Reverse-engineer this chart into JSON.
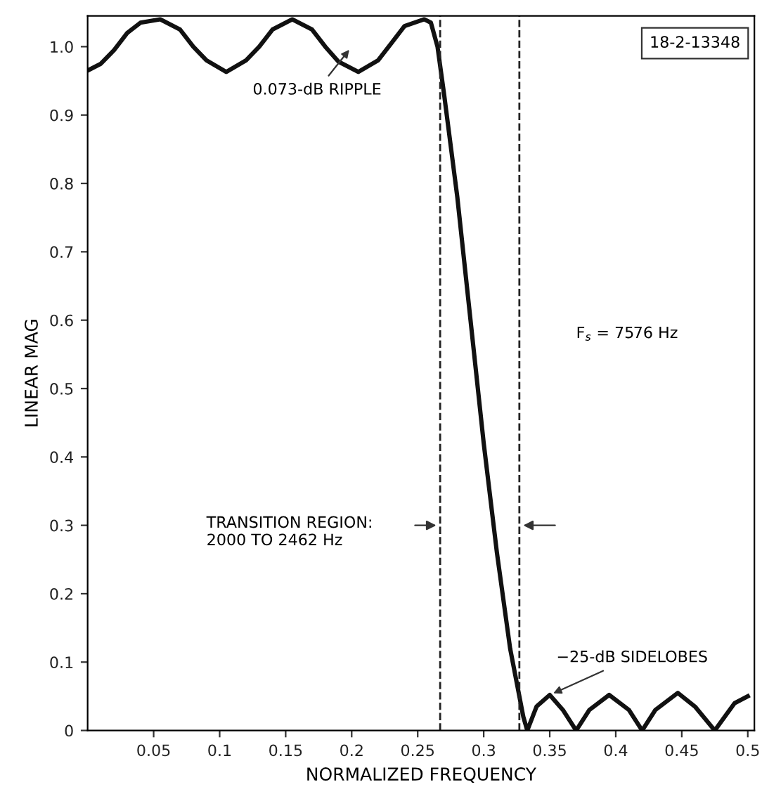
{
  "chart_data": {
    "type": "line",
    "xlabel": "NORMALIZED FREQUENCY",
    "ylabel": "LINEAR MAG",
    "x": [
      0,
      0.01,
      0.02,
      0.03,
      0.04,
      0.055,
      0.07,
      0.08,
      0.09,
      0.105,
      0.12,
      0.13,
      0.14,
      0.155,
      0.17,
      0.18,
      0.19,
      0.205,
      0.22,
      0.23,
      0.24,
      0.255,
      0.26,
      0.265,
      0.27,
      0.28,
      0.29,
      0.3,
      0.31,
      0.32,
      0.33,
      0.333,
      0.34,
      0.35,
      0.36,
      0.37,
      0.38,
      0.395,
      0.41,
      0.42,
      0.43,
      0.447,
      0.46,
      0.475,
      0.49,
      0.5
    ],
    "series": [
      {
        "color": "#111111",
        "values": [
          0.965,
          0.975,
          0.995,
          1.02,
          1.035,
          1.04,
          1.025,
          1.0,
          0.98,
          0.963,
          0.98,
          1.0,
          1.025,
          1.04,
          1.025,
          1.0,
          0.978,
          0.963,
          0.98,
          1.005,
          1.03,
          1.04,
          1.035,
          1.0,
          0.93,
          0.78,
          0.6,
          0.42,
          0.26,
          0.12,
          0.02,
          0.0,
          0.035,
          0.052,
          0.03,
          0.0,
          0.03,
          0.052,
          0.03,
          0.0,
          0.03,
          0.055,
          0.035,
          0.0,
          0.04,
          0.05
        ]
      }
    ],
    "xlim": [
      0,
      0.505
    ],
    "ylim": [
      0,
      1.045
    ],
    "xticks": [
      0.05,
      0.1,
      0.15,
      0.2,
      0.25,
      0.3,
      0.35,
      0.4,
      0.45,
      0.5
    ],
    "yticks": [
      0,
      0.1,
      0.2,
      0.3,
      0.4,
      0.5,
      0.6,
      0.7,
      0.8,
      0.9,
      {
        "value": 1.0,
        "label": "1.0"
      }
    ],
    "ref_lines": [
      {
        "axis": "x",
        "value": 0.267,
        "label": null,
        "line_style": "dashed"
      },
      {
        "axis": "x",
        "value": 0.327,
        "label": null,
        "line_style": "dashed"
      }
    ],
    "annotations": [
      {
        "text": "0.073-dB RIPPLE",
        "x": 0.2,
        "y": 1.0
      },
      "TRANSITION REGION:\n2000 TO 2462 Hz",
      "F$_{s}$ = 7576 Hz",
      {
        "text": "−25-dB SIDELOBES",
        "x": 0.35,
        "y": 0.052
      },
      "18-2-13348"
    ],
    "marker": "none",
    "line_style": "solid"
  }
}
